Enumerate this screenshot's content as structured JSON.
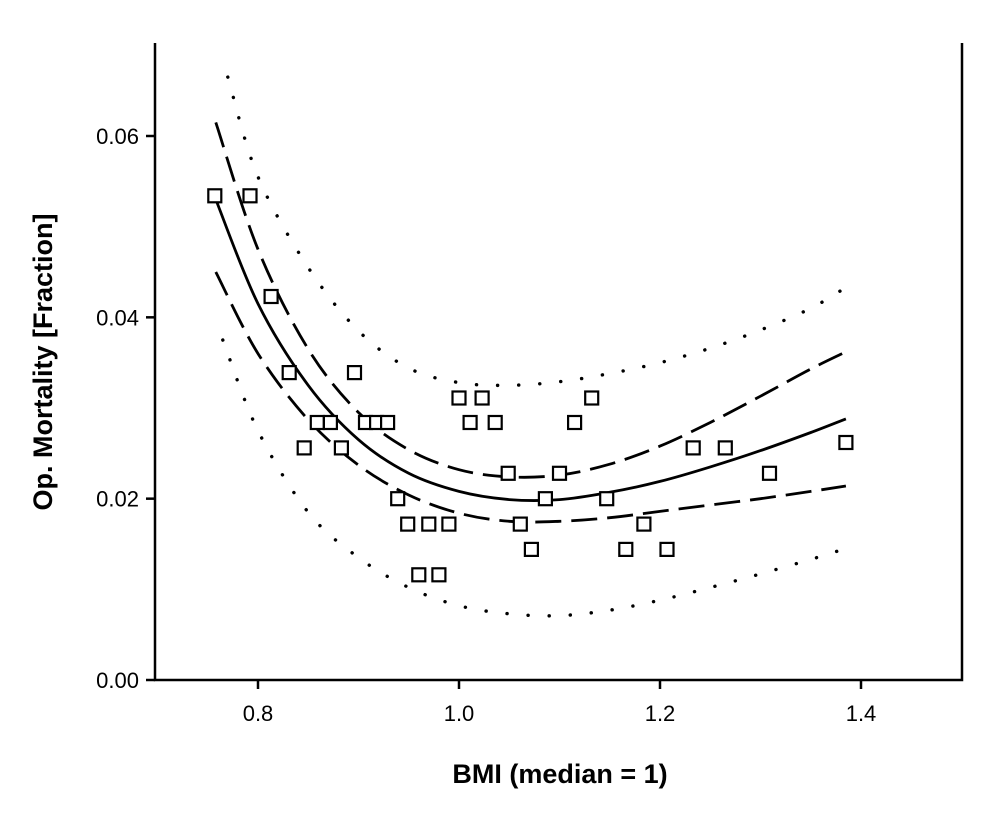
{
  "chart_data": {
    "type": "scatter",
    "title": "",
    "xlabel": "BMI  (median = 1)",
    "ylabel": "Op. Mortality  [Fraction]",
    "xlim": [
      0.7,
      1.5
    ],
    "ylim": [
      0.0,
      0.07
    ],
    "x_ticks": [
      0.8,
      1.0,
      1.2,
      1.4
    ],
    "x_tick_labels": [
      "0.8",
      "1.0",
      "1.2",
      "1.4"
    ],
    "y_ticks": [
      0.0,
      0.02,
      0.04,
      0.06
    ],
    "y_tick_labels": [
      "0.00",
      "0.02",
      "0.04",
      "0.06"
    ],
    "grid": false,
    "legend": "none",
    "points": [
      {
        "x": 0.757,
        "y": 0.0534
      },
      {
        "x": 0.792,
        "y": 0.0534
      },
      {
        "x": 0.813,
        "y": 0.0423
      },
      {
        "x": 0.831,
        "y": 0.0339
      },
      {
        "x": 0.846,
        "y": 0.0256
      },
      {
        "x": 0.859,
        "y": 0.0284
      },
      {
        "x": 0.872,
        "y": 0.0284
      },
      {
        "x": 0.883,
        "y": 0.0256
      },
      {
        "x": 0.896,
        "y": 0.0339
      },
      {
        "x": 0.907,
        "y": 0.0284
      },
      {
        "x": 0.918,
        "y": 0.0284
      },
      {
        "x": 0.929,
        "y": 0.0284
      },
      {
        "x": 0.939,
        "y": 0.02
      },
      {
        "x": 0.949,
        "y": 0.0172
      },
      {
        "x": 0.96,
        "y": 0.0116
      },
      {
        "x": 0.97,
        "y": 0.0172
      },
      {
        "x": 0.98,
        "y": 0.0116
      },
      {
        "x": 0.99,
        "y": 0.0172
      },
      {
        "x": 1.0,
        "y": 0.0311
      },
      {
        "x": 1.011,
        "y": 0.0284
      },
      {
        "x": 1.023,
        "y": 0.0311
      },
      {
        "x": 1.036,
        "y": 0.0284
      },
      {
        "x": 1.049,
        "y": 0.0228
      },
      {
        "x": 1.061,
        "y": 0.0172
      },
      {
        "x": 1.072,
        "y": 0.0144
      },
      {
        "x": 1.086,
        "y": 0.02
      },
      {
        "x": 1.1,
        "y": 0.0228
      },
      {
        "x": 1.115,
        "y": 0.0284
      },
      {
        "x": 1.132,
        "y": 0.0311
      },
      {
        "x": 1.147,
        "y": 0.02
      },
      {
        "x": 1.166,
        "y": 0.0144
      },
      {
        "x": 1.184,
        "y": 0.0172
      },
      {
        "x": 1.207,
        "y": 0.0144
      },
      {
        "x": 1.233,
        "y": 0.0256
      },
      {
        "x": 1.265,
        "y": 0.0256
      },
      {
        "x": 1.309,
        "y": 0.0228
      },
      {
        "x": 1.385,
        "y": 0.0262
      }
    ],
    "fit_curves": [
      {
        "style": "solid",
        "x": [
          0.758,
          0.8,
          0.85,
          0.9,
          0.95,
          1.0,
          1.05,
          1.1,
          1.15,
          1.2,
          1.25,
          1.3,
          1.35,
          1.385
        ],
        "y": [
          0.053,
          0.0415,
          0.0325,
          0.0265,
          0.0228,
          0.0208,
          0.0199,
          0.0199,
          0.0207,
          0.0219,
          0.0235,
          0.0253,
          0.0273,
          0.0288
        ]
      },
      {
        "style": "dashed",
        "x": [
          0.758,
          0.8,
          0.85,
          0.9,
          0.95,
          1.0,
          1.05,
          1.1,
          1.15,
          1.2,
          1.25,
          1.3,
          1.35,
          1.385
        ],
        "y": [
          0.0615,
          0.0475,
          0.0365,
          0.0295,
          0.0254,
          0.0232,
          0.0224,
          0.0226,
          0.0238,
          0.0258,
          0.0284,
          0.0313,
          0.0343,
          0.0362
        ]
      },
      {
        "style": "dashed",
        "x": [
          0.758,
          0.8,
          0.85,
          0.9,
          0.95,
          1.0,
          1.05,
          1.1,
          1.15,
          1.2,
          1.25,
          1.3,
          1.35,
          1.385
        ],
        "y": [
          0.045,
          0.036,
          0.0287,
          0.0237,
          0.0204,
          0.0184,
          0.0175,
          0.0175,
          0.0179,
          0.0186,
          0.0193,
          0.02,
          0.0208,
          0.0214
        ]
      },
      {
        "style": "dotted",
        "x": [
          0.77,
          0.8,
          0.85,
          0.9,
          0.95,
          1.0,
          1.05,
          1.1,
          1.15,
          1.2,
          1.25,
          1.3,
          1.35,
          1.385
        ],
        "y": [
          0.0665,
          0.0555,
          0.0455,
          0.0385,
          0.0344,
          0.0328,
          0.0325,
          0.0329,
          0.0338,
          0.035,
          0.0366,
          0.0386,
          0.041,
          0.0433
        ]
      },
      {
        "style": "dotted",
        "x": [
          0.765,
          0.8,
          0.85,
          0.9,
          0.95,
          1.0,
          1.05,
          1.1,
          1.15,
          1.2,
          1.25,
          1.3,
          1.35,
          1.385
        ],
        "y": [
          0.0375,
          0.0275,
          0.0185,
          0.0135,
          0.0102,
          0.0082,
          0.0073,
          0.0071,
          0.0077,
          0.0088,
          0.0102,
          0.0117,
          0.0133,
          0.0145
        ]
      }
    ]
  }
}
